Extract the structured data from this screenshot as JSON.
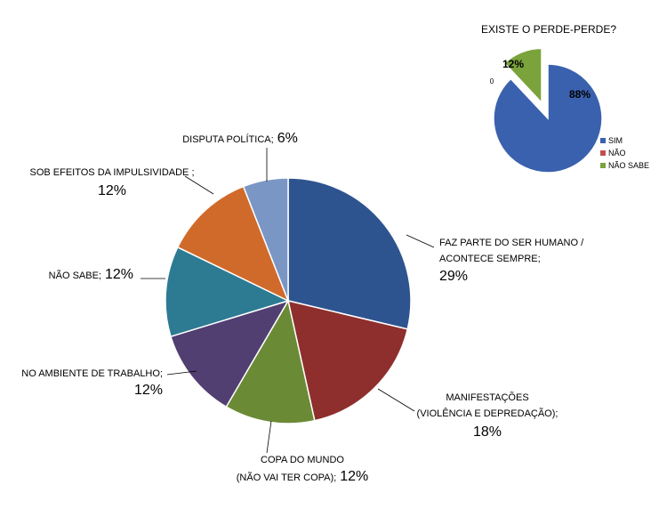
{
  "chart_data": [
    {
      "type": "pie",
      "title": "",
      "slices": [
        {
          "name_lines": [
            "FAZ PARTE DO SER HUMANO /",
            "ACONTECE SEMPRE;"
          ],
          "pct_text": "29%",
          "value": 29,
          "color": "#2e5490"
        },
        {
          "name_lines": [
            "MANIFESTAÇÕES",
            "(VIOLÊNCIA E DEPREDAÇÃO);"
          ],
          "pct_text": "18%",
          "value": 18,
          "color": "#8e2f2d"
        },
        {
          "name_lines": [
            "COPA DO  MUNDO",
            "(NÃO VAI TER COPA);"
          ],
          "pct_text": "12%",
          "value": 12,
          "color": "#6b8a35"
        },
        {
          "name_lines": [
            "NO AMBIENTE DE TRABALHO;"
          ],
          "pct_text": "12%",
          "value": 12,
          "color": "#513f72"
        },
        {
          "name_lines": [
            "NÃO SABE;"
          ],
          "pct_text": "12%",
          "value": 12,
          "color": "#2d7a93"
        },
        {
          "name_lines": [
            "SOB EFEITOS DA IMPULSIVIDADE ;"
          ],
          "pct_text": "12%",
          "value": 12,
          "color": "#d06a2b"
        },
        {
          "name_lines": [
            "DISPUTA POLÍTICA;"
          ],
          "pct_text": "6%",
          "value": 6,
          "color": "#7a96c4"
        }
      ]
    },
    {
      "type": "pie",
      "title": "EXISTE O PERDE-PERDE?",
      "legend_position": "right",
      "slices": [
        {
          "name": "SIM",
          "label": "88%",
          "value": 88,
          "color": "#3a61ad"
        },
        {
          "name": "NÃO",
          "label": "0",
          "value": 0,
          "color": "#c0504d"
        },
        {
          "name": "NÃO SABE",
          "label": "12%",
          "value": 12,
          "color": "#7ba33c"
        }
      ]
    }
  ]
}
